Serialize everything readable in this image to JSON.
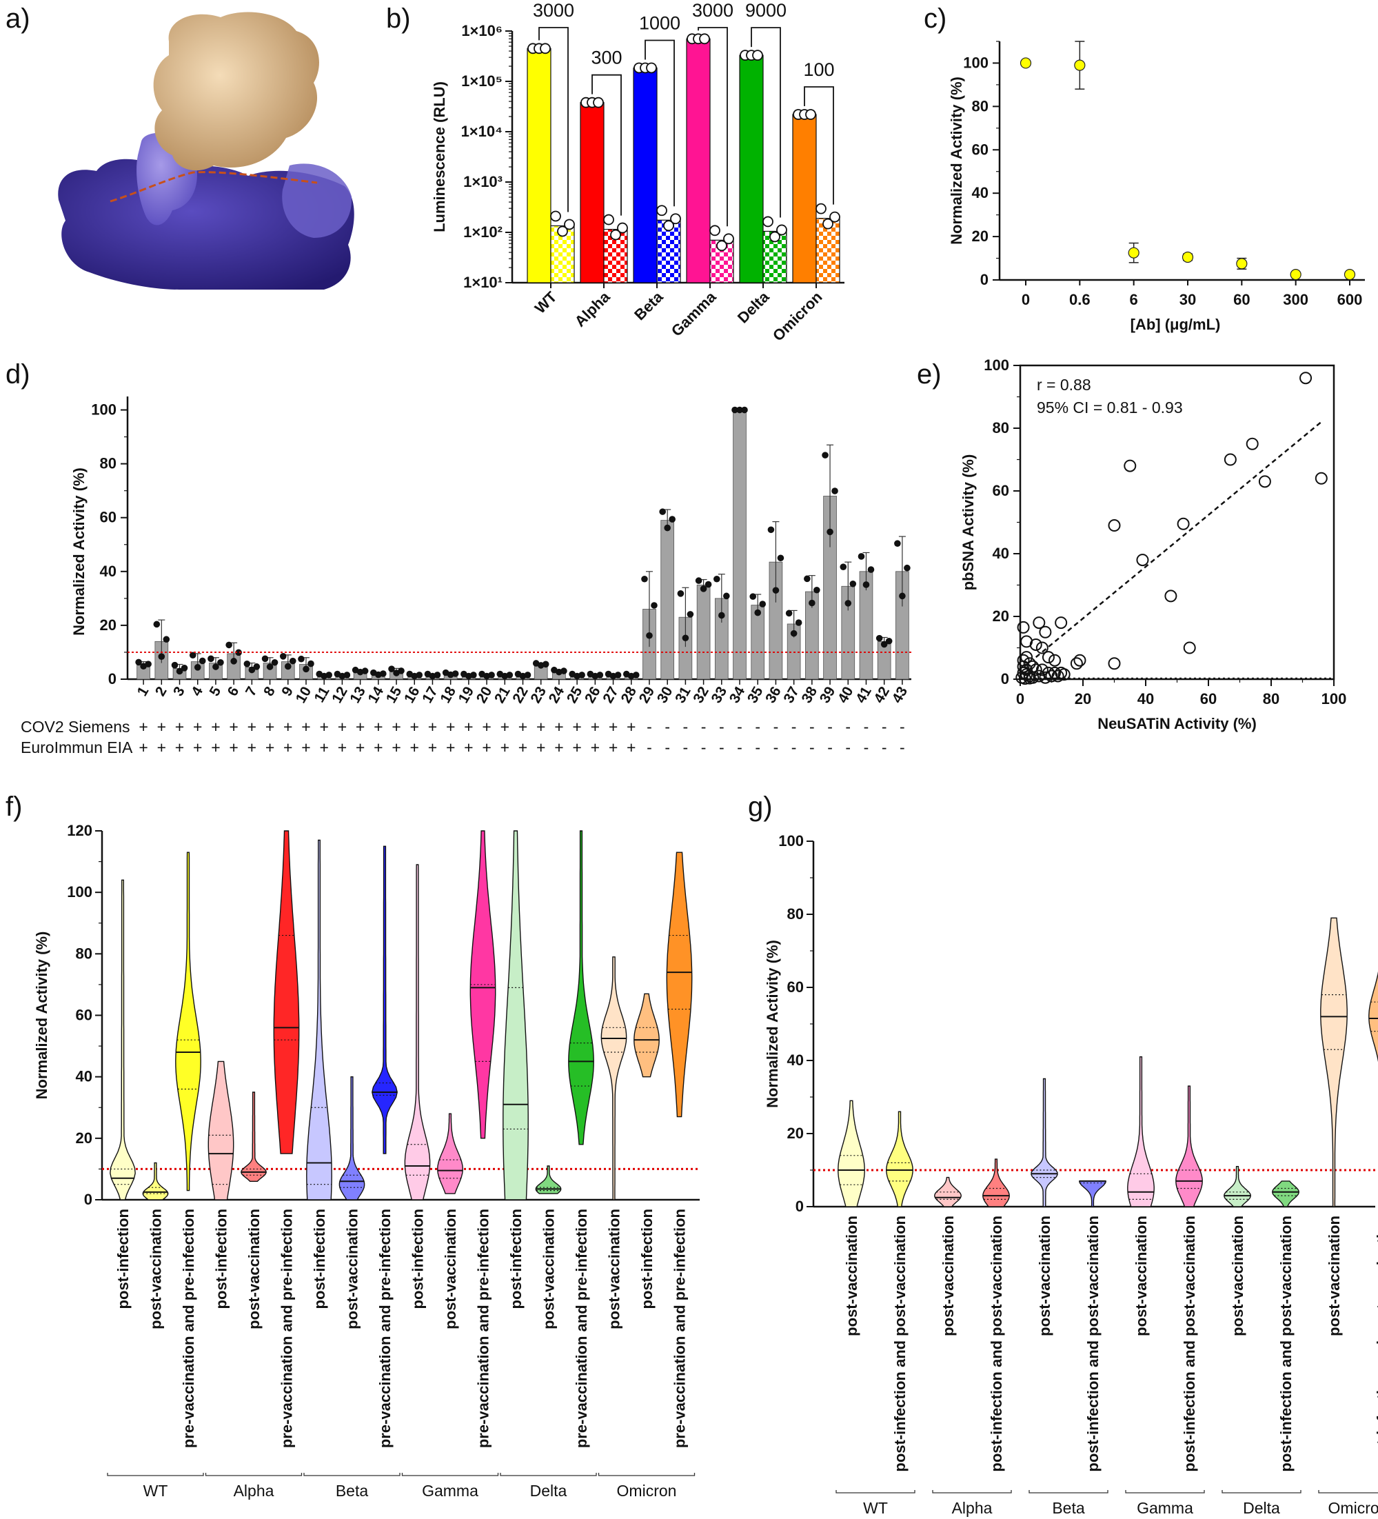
{
  "panel_labels": [
    "a)",
    "b)",
    "c)",
    "d)",
    "e)",
    "f)",
    "g)"
  ],
  "colors": {
    "WT": "#ffff00",
    "Alpha": "#ff0000",
    "Beta": "#0000ff",
    "Gamma": "#ff1493",
    "Delta": "#00b200",
    "Omicron": "#ff7f00",
    "gray_bar": "#a3a3a3",
    "threshold": "#e00000",
    "protein_top": "#e3bf8f",
    "protein_mid": "#7b6fd6",
    "protein_low": "#3b2f9a"
  },
  "chart_data": [
    {
      "id": "b",
      "type": "bar",
      "title": "",
      "ylabel": "Luminescence (RLU)",
      "yscale": "log",
      "ylim": [
        10,
        1000000
      ],
      "ytick_labels": [
        "1×10⁶",
        "1×10⁵",
        "1×10⁴",
        "1×10³",
        "1×10²",
        "1×10¹"
      ],
      "categories": [
        "WT",
        "Alpha",
        "Beta",
        "Gamma",
        "Delta",
        "Omicron"
      ],
      "series": [
        {
          "name": "solid",
          "values": [
            450000,
            38000,
            185000,
            700000,
            330000,
            22000
          ]
        },
        {
          "name": "checkered",
          "values": [
            135,
            115,
            175,
            70,
            105,
            190
          ]
        }
      ],
      "fold_labels": [
        "3000",
        "300",
        "1000",
        "3000",
        "9000",
        "100"
      ]
    },
    {
      "id": "c",
      "type": "scatter",
      "xlabel": "[Ab] (μg/mL)",
      "ylabel": "Normalized Activity (%)",
      "ylim": [
        0,
        110
      ],
      "yticks": [
        "0",
        "20",
        "40",
        "60",
        "80",
        "100"
      ],
      "categories": [
        "0",
        "0.6",
        "6",
        "30",
        "60",
        "300",
        "600"
      ],
      "values": [
        100,
        99,
        12.5,
        10.5,
        7.5,
        2.5,
        2.5
      ],
      "errors": [
        0,
        11,
        4.5,
        1.5,
        2.5,
        0.5,
        0.5
      ]
    },
    {
      "id": "d",
      "type": "bar",
      "ylabel": "Normalized Activity  (%)",
      "ylim": [
        0,
        105
      ],
      "yticks": [
        "0",
        "20",
        "40",
        "60",
        "80",
        "100"
      ],
      "threshold": 10,
      "categories": [
        "1",
        "2",
        "3",
        "4",
        "5",
        "6",
        "7",
        "8",
        "9",
        "10",
        "11",
        "12",
        "13",
        "14",
        "15",
        "16",
        "17",
        "18",
        "19",
        "20",
        "21",
        "22",
        "23",
        "24",
        "25",
        "26",
        "27",
        "28",
        "29",
        "30",
        "31",
        "32",
        "33",
        "34",
        "35",
        "36",
        "37",
        "38",
        "39",
        "40",
        "41",
        "42",
        "43"
      ],
      "values": [
        5.5,
        14,
        4,
        6.5,
        6,
        9.5,
        4.5,
        6,
        6.5,
        5.5,
        1.5,
        1.5,
        3,
        2,
        3,
        1.5,
        1.5,
        2,
        1.5,
        1.5,
        1.5,
        1.5,
        5.5,
        3,
        1.5,
        1.5,
        1.5,
        1.5,
        26,
        59,
        23,
        35,
        30,
        100,
        27.5,
        43.5,
        20.5,
        32.5,
        68,
        34.5,
        40,
        14,
        40
      ],
      "errors": [
        1,
        8,
        1.5,
        3,
        2,
        4,
        1.5,
        2,
        2.5,
        2.5,
        0.5,
        0.5,
        0.5,
        0.5,
        1,
        0.5,
        0.5,
        0.5,
        0.5,
        0.5,
        0.5,
        0.5,
        0.5,
        0.5,
        0.5,
        0.5,
        0.5,
        0.5,
        14,
        4,
        11,
        2,
        9,
        0,
        4,
        15,
        5,
        6,
        19,
        9,
        7,
        1.5,
        13
      ],
      "row_labels": [
        "COV2  Siemens",
        "EuroImmun EIA"
      ],
      "row_marks": [
        [
          "+",
          "+",
          "+",
          "+",
          "+",
          "+",
          "+",
          "+",
          "+",
          "+",
          "+",
          "+",
          "+",
          "+",
          "+",
          "+",
          "+",
          "+",
          "+",
          "+",
          "+",
          "+",
          "+",
          "+",
          "+",
          "+",
          "+",
          "+",
          "-",
          "-",
          "-",
          "-",
          "-",
          "-",
          "-",
          "-",
          "-",
          "-",
          "-",
          "-",
          "-",
          "-",
          "-"
        ],
        [
          "+",
          "+",
          "+",
          "+",
          "+",
          "+",
          "+",
          "+",
          "+",
          "+",
          "+",
          "+",
          "+",
          "+",
          "+",
          "+",
          "+",
          "+",
          "+",
          "+",
          "+",
          "+",
          "+",
          "+",
          "+",
          "+",
          "+",
          "+",
          "-",
          "-",
          "-",
          "-",
          "-",
          "-",
          "-",
          "-",
          "-",
          "-",
          "-",
          "-",
          "-",
          "-",
          "-"
        ]
      ]
    },
    {
      "id": "e",
      "type": "scatter",
      "xlabel": "NeuSATiN Activity (%)",
      "ylabel": "pbSNA Activity  (%)",
      "xlim": [
        0,
        100
      ],
      "ylim": [
        0,
        100
      ],
      "xticks": [
        "0",
        "20",
        "40",
        "60",
        "80",
        "100"
      ],
      "yticks": [
        "0",
        "20",
        "40",
        "60",
        "80",
        "100"
      ],
      "annotations": [
        "r = 0.88",
        "95%  CI = 0.81 - 0.93"
      ],
      "fit": [
        [
          5,
          7
        ],
        [
          96,
          82
        ]
      ],
      "points": [
        [
          91,
          96
        ],
        [
          35,
          68
        ],
        [
          74,
          75
        ],
        [
          67,
          70
        ],
        [
          78,
          63
        ],
        [
          96,
          64
        ],
        [
          30,
          49
        ],
        [
          52,
          49.5
        ],
        [
          39,
          38
        ],
        [
          48,
          26.5
        ],
        [
          54,
          10
        ],
        [
          30,
          5
        ],
        [
          13,
          18
        ],
        [
          6,
          18
        ],
        [
          1,
          16.5
        ],
        [
          2,
          12
        ],
        [
          5,
          11
        ],
        [
          7,
          10
        ],
        [
          8,
          15
        ],
        [
          9,
          7
        ],
        [
          11,
          6
        ],
        [
          19,
          6
        ],
        [
          18,
          5
        ],
        [
          2,
          7
        ],
        [
          1,
          6
        ],
        [
          3,
          5
        ],
        [
          4,
          4
        ],
        [
          1,
          4
        ],
        [
          2,
          3
        ],
        [
          5,
          3
        ],
        [
          7,
          3
        ],
        [
          9,
          2
        ],
        [
          11,
          2
        ],
        [
          13,
          2
        ],
        [
          14,
          1.5
        ],
        [
          1,
          2
        ],
        [
          2,
          1.5
        ],
        [
          3,
          1
        ],
        [
          4,
          0.5
        ],
        [
          6,
          1
        ],
        [
          8,
          0.5
        ],
        [
          10,
          1
        ],
        [
          12,
          1
        ],
        [
          0.5,
          0.5
        ],
        [
          1.5,
          0.2
        ],
        [
          3,
          0.3
        ]
      ]
    },
    {
      "id": "f",
      "type": "violin",
      "ylabel": "Normalized Activity (%)",
      "ylim": [
        0,
        120
      ],
      "yticks": [
        "0",
        "20",
        "40",
        "60",
        "80",
        "100",
        "120"
      ],
      "threshold": 10,
      "groups": [
        "WT",
        "Alpha",
        "Beta",
        "Gamma",
        "Delta",
        "Omicron"
      ],
      "categories": [
        "post-infection",
        "post-vaccination",
        "pre-vaccination and pre-infection",
        "post-infection",
        "post-vaccination",
        "pre-vaccination and pre-infection",
        "post-infection",
        "post-vaccination",
        "pre-vaccination and pre-infection",
        "post-infection",
        "post-vaccination",
        "pre-vaccination and pre-infection",
        "post-infection",
        "post-vaccination",
        "pre-vaccination and pre-infection",
        "post-vaccination",
        "post-infection",
        "pre-vaccination and pre-infection"
      ],
      "group_index": [
        0,
        0,
        0,
        1,
        1,
        1,
        2,
        2,
        2,
        3,
        3,
        3,
        4,
        4,
        4,
        5,
        5,
        5
      ],
      "medians": [
        7,
        2.5,
        48,
        15,
        9,
        56,
        12,
        6,
        35,
        11,
        9.5,
        69,
        31,
        3.5,
        45,
        52.5,
        52,
        74
      ],
      "q1": [
        5,
        2,
        36,
        5,
        8,
        52,
        5,
        4,
        34,
        8,
        7,
        45,
        23,
        3,
        37,
        48,
        48,
        62
      ],
      "q3": [
        10,
        4,
        52,
        21,
        10,
        86,
        30,
        8,
        38,
        18,
        13,
        70,
        69,
        4,
        51,
        56,
        56,
        86
      ],
      "mins": [
        0,
        0,
        3,
        0,
        6,
        15,
        0,
        0,
        15,
        0,
        2,
        20,
        0,
        2,
        18,
        0,
        40,
        27
      ],
      "maxs": [
        104,
        12,
        113,
        45,
        35,
        120,
        117,
        40,
        115,
        109,
        28,
        120,
        120,
        11,
        120,
        79,
        67,
        113
      ],
      "modes": [
        9,
        2,
        45,
        18,
        9,
        55,
        8,
        5,
        35,
        12,
        10,
        68,
        25,
        3.5,
        45,
        53,
        52,
        72
      ]
    },
    {
      "id": "g",
      "type": "violin",
      "ylabel": "Normalized Activity (%)",
      "ylim": [
        0,
        100
      ],
      "yticks": [
        "0",
        "20",
        "40",
        "60",
        "80",
        "100"
      ],
      "threshold": 10,
      "groups": [
        "WT",
        "Alpha",
        "Beta",
        "Gamma",
        "Delta",
        "Omicron"
      ],
      "categories": [
        "post-vaccination",
        "post-infection and post-vaccination",
        "post-vaccination",
        "post-infection and post-vaccination",
        "post-vaccination",
        "post-infection and post-vaccination",
        "post-vaccination",
        "post-infection and post-vaccination",
        "post-vaccination",
        "post-infection and post-vaccination",
        "post-vaccination",
        "post-infection and post-vaccination"
      ],
      "group_index": [
        0,
        0,
        1,
        1,
        2,
        2,
        3,
        3,
        4,
        4,
        5,
        5
      ],
      "medians": [
        10,
        10,
        2.5,
        3,
        9,
        7,
        4,
        7,
        3,
        4,
        52,
        51.5
      ],
      "q1": [
        6,
        7,
        2,
        2,
        8,
        6.5,
        2,
        5,
        2,
        3,
        43,
        48
      ],
      "q3": [
        14,
        12,
        4,
        5,
        10,
        7,
        9,
        10,
        4,
        5,
        58,
        56
      ],
      "mins": [
        0,
        0,
        0,
        0,
        0,
        0,
        0,
        0,
        0,
        0,
        0,
        32
      ],
      "maxs": [
        29,
        26,
        8,
        13,
        35,
        7,
        41,
        33,
        11,
        7,
        79,
        67
      ],
      "modes": [
        10,
        10,
        3,
        3,
        9,
        7,
        5,
        7,
        3,
        4,
        53,
        52
      ]
    }
  ]
}
